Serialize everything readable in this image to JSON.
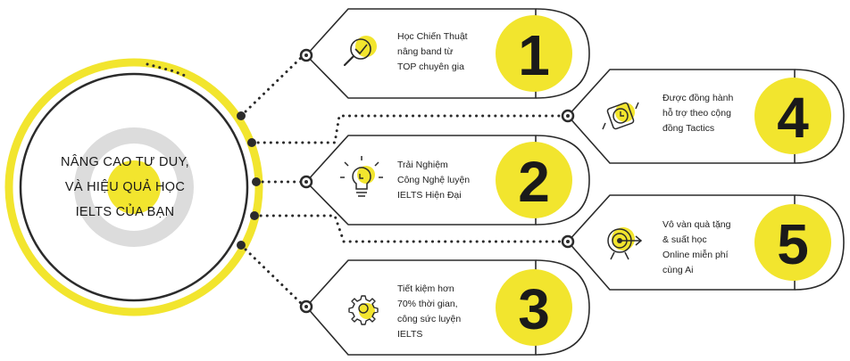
{
  "center": {
    "lines": [
      "NÂNG CAO TƯ DUY,",
      "VÀ HIỆU QUẢ HỌC",
      "IELTS CỦA BẠN"
    ]
  },
  "cards": [
    {
      "number": "1",
      "lines": [
        "Học Chiến Thuật",
        "nâng band từ",
        "TOP chuyên gia"
      ],
      "icon": "target-magnifier-icon"
    },
    {
      "number": "2",
      "lines": [
        "Trải Nghiệm",
        "Công Nghệ luyện",
        "IELTS Hiện Đại"
      ],
      "icon": "lightbulb-icon"
    },
    {
      "number": "3",
      "lines": [
        "Tiết kiệm hơn",
        "70% thời gian,",
        "công sức luyện",
        "IELTS"
      ],
      "icon": "gear-icon"
    },
    {
      "number": "4",
      "lines": [
        "Được đồng hành",
        "hỗ trợ theo cộng",
        "đồng Tactics"
      ],
      "icon": "watch-icon"
    },
    {
      "number": "5",
      "lines": [
        "Vô vàn quà tặng",
        "& suất học",
        "Online miễn phí",
        "cùng Ai"
      ],
      "icon": "target-arrow-icon"
    }
  ],
  "colors": {
    "accent": "#f2e52e",
    "stroke": "#2b2b2b",
    "ring": "#dcdcdc"
  }
}
